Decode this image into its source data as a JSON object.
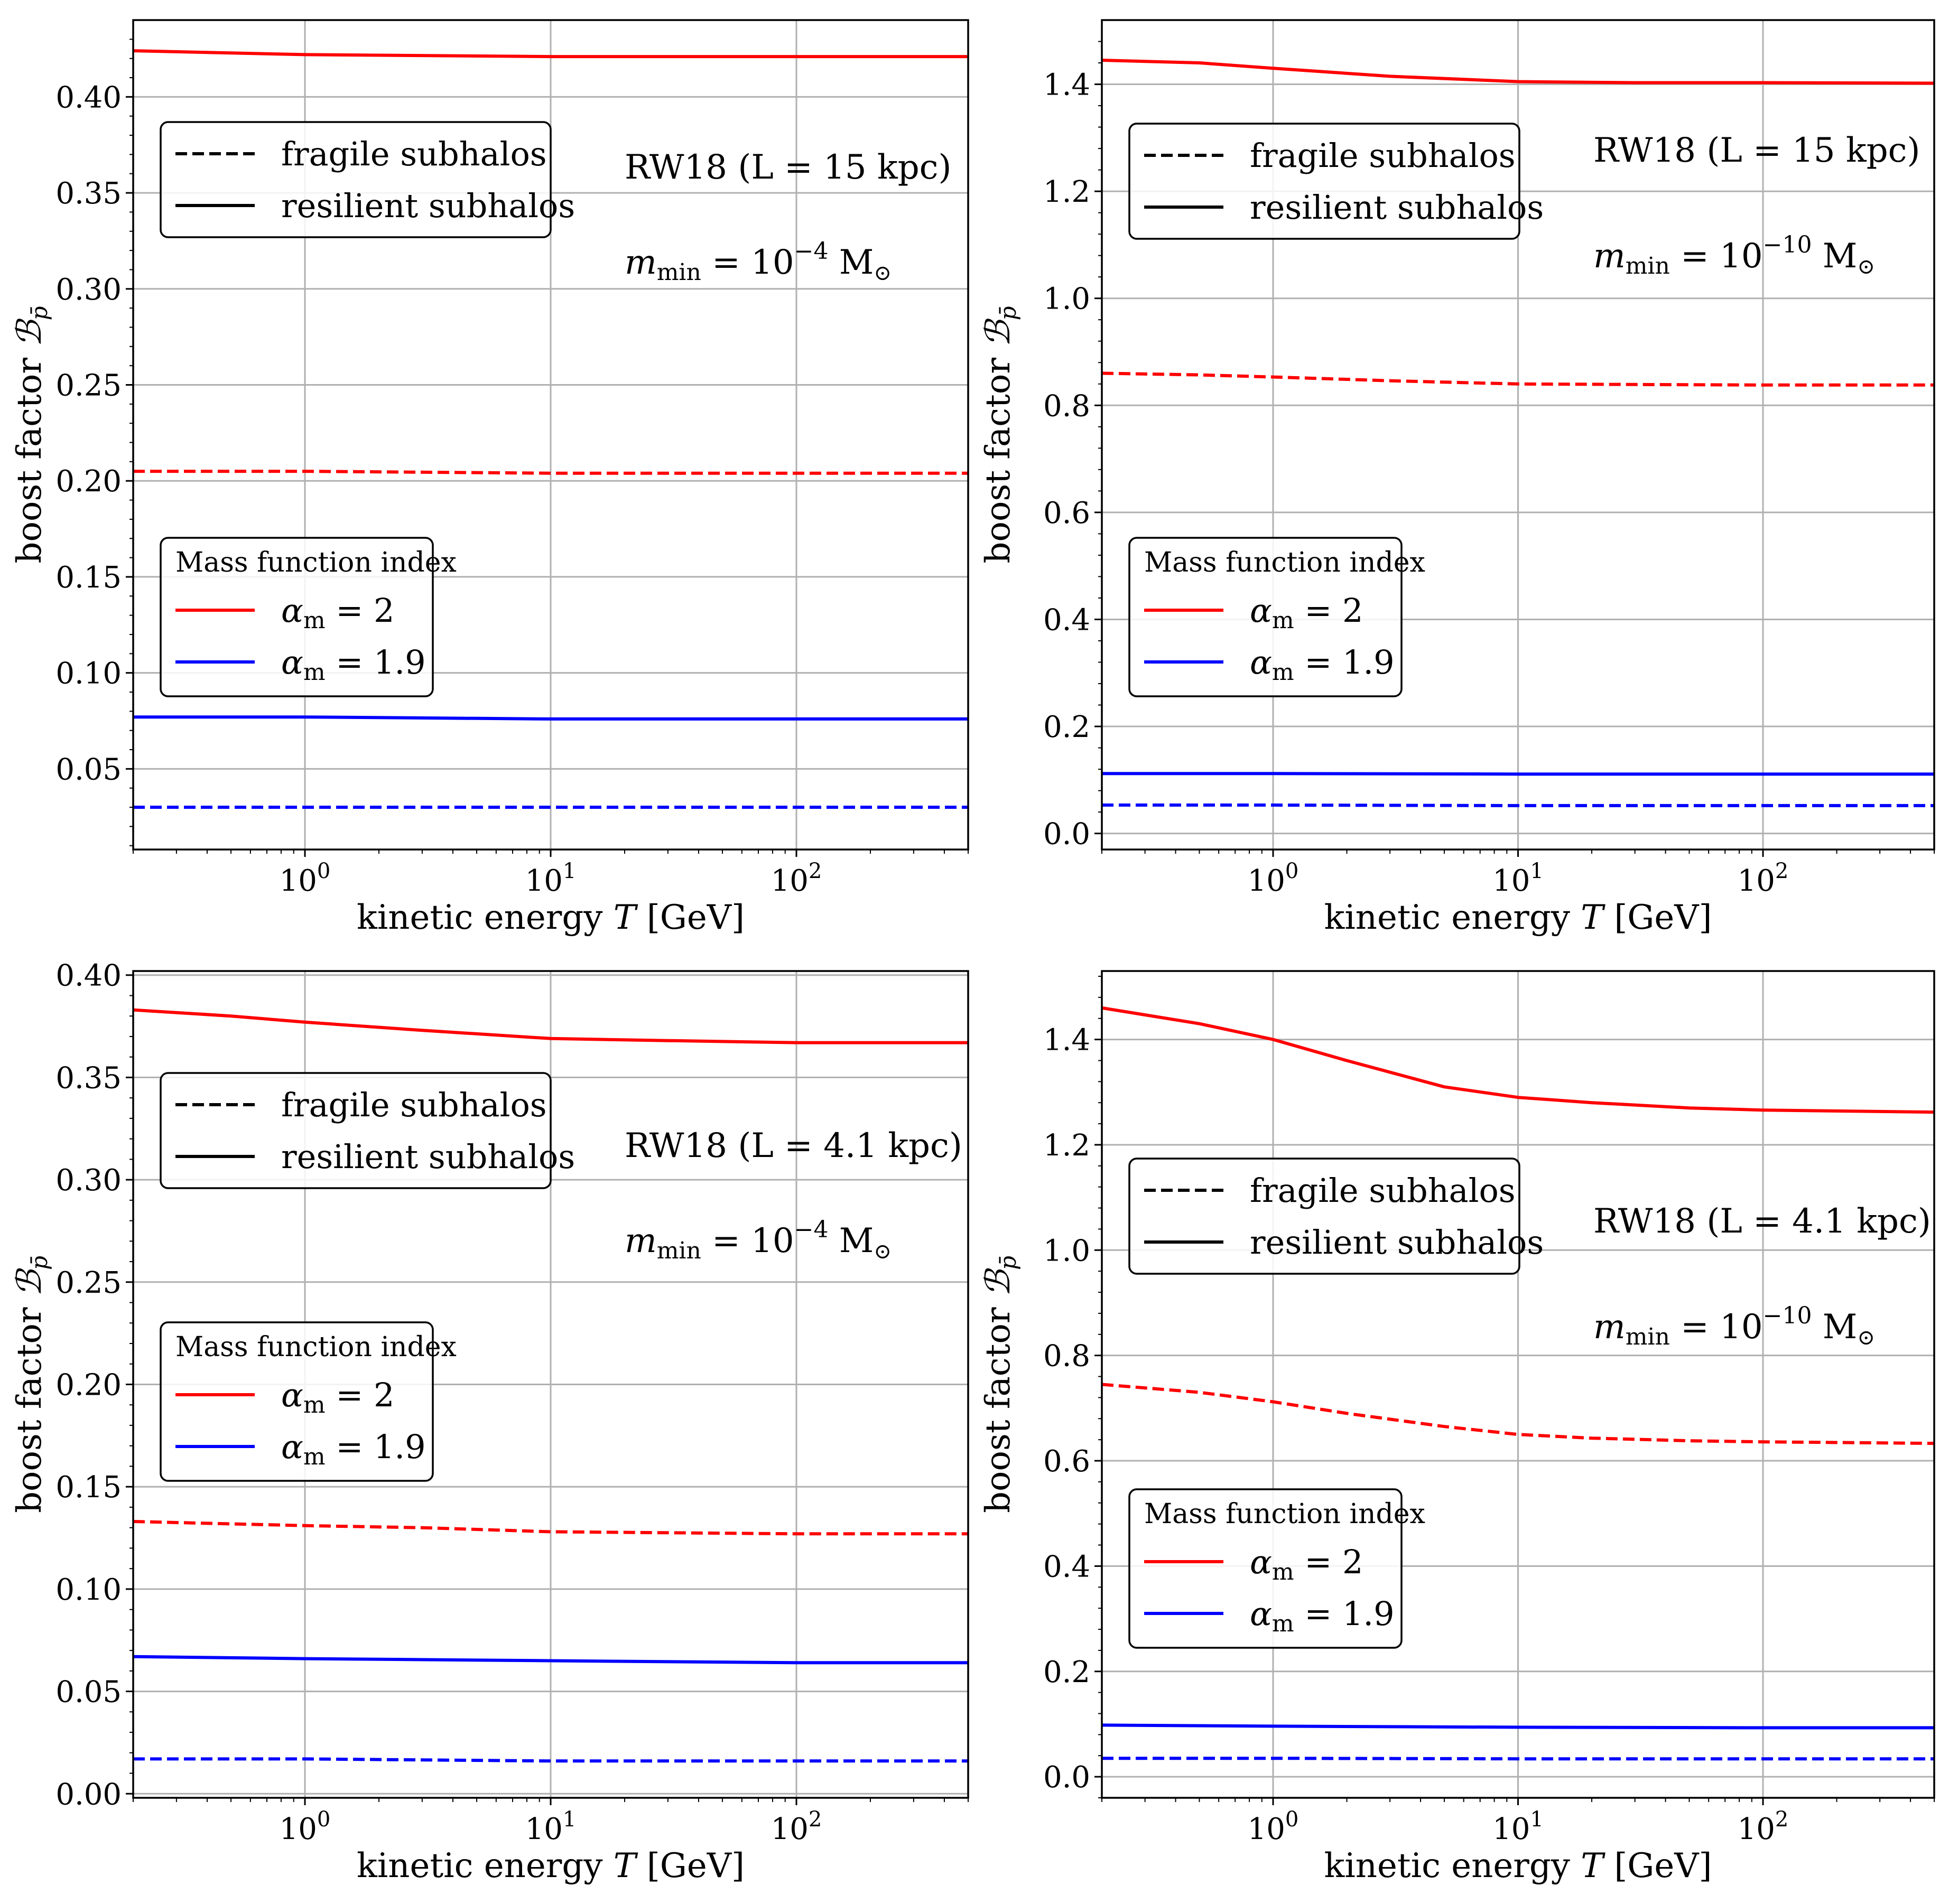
{
  "figure": {
    "colors": {
      "red": "#ff0000",
      "blue": "#0000ff",
      "grid": "#b0b0b0",
      "black": "#000000"
    }
  },
  "chart_data": [
    {
      "id": "top-left",
      "type": "line",
      "xscale": "log",
      "xlim": [
        0.2,
        500
      ],
      "ylim": [
        0.008,
        0.44
      ],
      "yticks": [
        0.05,
        0.1,
        0.15,
        0.2,
        0.25,
        0.3,
        0.35,
        0.4
      ],
      "ytick_labels": [
        "0.05",
        "0.10",
        "0.15",
        "0.20",
        "0.25",
        "0.30",
        "0.35",
        "0.40"
      ],
      "xticks": [
        1,
        10,
        100
      ],
      "xtick_labels": [
        {
          "base": "10",
          "exp": "0"
        },
        {
          "base": "10",
          "exp": "1"
        },
        {
          "base": "10",
          "exp": "2"
        }
      ],
      "xlabel": {
        "text": "kinetic energy ",
        "var": "T",
        "unit": " [GeV]"
      },
      "ylabel": {
        "text": "boost factor ",
        "var": "ℬ",
        "sub": "p̄"
      },
      "legend_style": {
        "placement": "upper-left",
        "entries": [
          "fragile subhalos",
          "resilient subhalos"
        ]
      },
      "legend_color": {
        "placement": "middle-left",
        "title": "Mass function index",
        "entries": [
          {
            "symbol": "α",
            "sub": "m",
            "text": " = 2"
          },
          {
            "symbol": "α",
            "sub": "m",
            "text": " = 1.9"
          }
        ]
      },
      "annotation": {
        "line1": "RW18 (L = 15 kpc)",
        "line2": {
          "var": "m",
          "sub": "min",
          "text": " = 10",
          "sup": "−4",
          "unit": " M",
          "unit_sub": "⊙"
        }
      },
      "series": [
        {
          "name": "resilient α=2",
          "color": "red",
          "style": "solid",
          "x": [
            0.2,
            1,
            10,
            100,
            500
          ],
          "y": [
            0.424,
            0.422,
            0.421,
            0.421,
            0.421
          ]
        },
        {
          "name": "fragile α=2",
          "color": "red",
          "style": "dashed",
          "x": [
            0.2,
            1,
            10,
            100,
            500
          ],
          "y": [
            0.205,
            0.205,
            0.204,
            0.204,
            0.204
          ]
        },
        {
          "name": "resilient α=1.9",
          "color": "blue",
          "style": "solid",
          "x": [
            0.2,
            1,
            10,
            100,
            500
          ],
          "y": [
            0.077,
            0.077,
            0.076,
            0.076,
            0.076
          ]
        },
        {
          "name": "fragile α=1.9",
          "color": "blue",
          "style": "dashed",
          "x": [
            0.2,
            1,
            10,
            100,
            500
          ],
          "y": [
            0.03,
            0.03,
            0.03,
            0.03,
            0.03
          ]
        }
      ]
    },
    {
      "id": "top-right",
      "type": "line",
      "xscale": "log",
      "xlim": [
        0.2,
        500
      ],
      "ylim": [
        -0.03,
        1.52
      ],
      "yticks": [
        0.0,
        0.2,
        0.4,
        0.6,
        0.8,
        1.0,
        1.2,
        1.4
      ],
      "ytick_labels": [
        "0.0",
        "0.2",
        "0.4",
        "0.6",
        "0.8",
        "1.0",
        "1.2",
        "1.4"
      ],
      "xticks": [
        1,
        10,
        100
      ],
      "xtick_labels": [
        {
          "base": "10",
          "exp": "0"
        },
        {
          "base": "10",
          "exp": "1"
        },
        {
          "base": "10",
          "exp": "2"
        }
      ],
      "xlabel": {
        "text": "kinetic energy ",
        "var": "T",
        "unit": " [GeV]"
      },
      "ylabel": {
        "text": "boost factor ",
        "var": "ℬ",
        "sub": "p̄"
      },
      "legend_style": {
        "placement": "upper-left",
        "entries": [
          "fragile subhalos",
          "resilient subhalos"
        ]
      },
      "legend_color": {
        "placement": "middle-left",
        "title": "Mass function index",
        "entries": [
          {
            "symbol": "α",
            "sub": "m",
            "text": " = 2"
          },
          {
            "symbol": "α",
            "sub": "m",
            "text": " = 1.9"
          }
        ]
      },
      "annotation": {
        "line1": "RW18 (L = 15 kpc)",
        "line2": {
          "var": "m",
          "sub": "min",
          "text": " = 10",
          "sup": "−10",
          "unit": " M",
          "unit_sub": "⊙"
        }
      },
      "series": [
        {
          "name": "resilient α=2",
          "color": "red",
          "style": "solid",
          "x": [
            0.2,
            0.5,
            1,
            3,
            10,
            30,
            100,
            500
          ],
          "y": [
            1.445,
            1.44,
            1.43,
            1.415,
            1.405,
            1.403,
            1.403,
            1.402
          ]
        },
        {
          "name": "fragile α=2",
          "color": "red",
          "style": "dashed",
          "x": [
            0.2,
            0.5,
            1,
            3,
            10,
            30,
            100,
            500
          ],
          "y": [
            0.86,
            0.857,
            0.853,
            0.846,
            0.84,
            0.839,
            0.838,
            0.838
          ]
        },
        {
          "name": "resilient α=1.9",
          "color": "blue",
          "style": "solid",
          "x": [
            0.2,
            1,
            10,
            100,
            500
          ],
          "y": [
            0.112,
            0.112,
            0.111,
            0.111,
            0.111
          ]
        },
        {
          "name": "fragile α=1.9",
          "color": "blue",
          "style": "dashed",
          "x": [
            0.2,
            1,
            10,
            100,
            500
          ],
          "y": [
            0.053,
            0.053,
            0.052,
            0.052,
            0.052
          ]
        }
      ]
    },
    {
      "id": "bottom-left",
      "type": "line",
      "xscale": "log",
      "xlim": [
        0.2,
        500
      ],
      "ylim": [
        -0.002,
        0.402
      ],
      "yticks": [
        0.0,
        0.05,
        0.1,
        0.15,
        0.2,
        0.25,
        0.3,
        0.35,
        0.4
      ],
      "ytick_labels": [
        "0.00",
        "0.05",
        "0.10",
        "0.15",
        "0.20",
        "0.25",
        "0.30",
        "0.35",
        "0.40"
      ],
      "xticks": [
        1,
        10,
        100
      ],
      "xtick_labels": [
        {
          "base": "10",
          "exp": "0"
        },
        {
          "base": "10",
          "exp": "1"
        },
        {
          "base": "10",
          "exp": "2"
        }
      ],
      "xlabel": {
        "text": "kinetic energy ",
        "var": "T",
        "unit": " [GeV]"
      },
      "ylabel": {
        "text": "boost factor ",
        "var": "ℬ",
        "sub": "p̄"
      },
      "legend_style": {
        "placement": "upper-left",
        "entries": [
          "fragile subhalos",
          "resilient subhalos"
        ]
      },
      "legend_color": {
        "placement": "middle-left",
        "title": "Mass function index",
        "entries": [
          {
            "symbol": "α",
            "sub": "m",
            "text": " = 2"
          },
          {
            "symbol": "α",
            "sub": "m",
            "text": " = 1.9"
          }
        ]
      },
      "annotation": {
        "line1": "RW18 (L = 4.1 kpc)",
        "line2": {
          "var": "m",
          "sub": "min",
          "text": " = 10",
          "sup": "−4",
          "unit": " M",
          "unit_sub": "⊙"
        }
      },
      "series": [
        {
          "name": "resilient α=2",
          "color": "red",
          "style": "solid",
          "x": [
            0.2,
            0.5,
            1,
            3,
            10,
            30,
            100,
            500
          ],
          "y": [
            0.383,
            0.38,
            0.377,
            0.373,
            0.369,
            0.368,
            0.367,
            0.367
          ]
        },
        {
          "name": "fragile α=2",
          "color": "red",
          "style": "dashed",
          "x": [
            0.2,
            1,
            3,
            10,
            100,
            500
          ],
          "y": [
            0.133,
            0.131,
            0.13,
            0.128,
            0.127,
            0.127
          ]
        },
        {
          "name": "resilient α=1.9",
          "color": "blue",
          "style": "solid",
          "x": [
            0.2,
            1,
            10,
            100,
            500
          ],
          "y": [
            0.067,
            0.066,
            0.065,
            0.064,
            0.064
          ]
        },
        {
          "name": "fragile α=1.9",
          "color": "blue",
          "style": "dashed",
          "x": [
            0.2,
            1,
            10,
            100,
            500
          ],
          "y": [
            0.017,
            0.017,
            0.016,
            0.016,
            0.016
          ]
        }
      ]
    },
    {
      "id": "bottom-right",
      "type": "line",
      "xscale": "log",
      "xlim": [
        0.2,
        500
      ],
      "ylim": [
        -0.04,
        1.53
      ],
      "yticks": [
        0.0,
        0.2,
        0.4,
        0.6,
        0.8,
        1.0,
        1.2,
        1.4
      ],
      "ytick_labels": [
        "0.0",
        "0.2",
        "0.4",
        "0.6",
        "0.8",
        "1.0",
        "1.2",
        "1.4"
      ],
      "xticks": [
        1,
        10,
        100
      ],
      "xtick_labels": [
        {
          "base": "10",
          "exp": "0"
        },
        {
          "base": "10",
          "exp": "1"
        },
        {
          "base": "10",
          "exp": "2"
        }
      ],
      "xlabel": {
        "text": "kinetic energy ",
        "var": "T",
        "unit": " [GeV]"
      },
      "ylabel": {
        "text": "boost factor ",
        "var": "ℬ",
        "sub": "p̄"
      },
      "legend_style": {
        "placement": "middle-left",
        "entries": [
          "fragile subhalos",
          "resilient subhalos"
        ]
      },
      "legend_color": {
        "placement": "lower-left",
        "title": "Mass function index",
        "entries": [
          {
            "symbol": "α",
            "sub": "m",
            "text": " = 2"
          },
          {
            "symbol": "α",
            "sub": "m",
            "text": " = 1.9"
          }
        ]
      },
      "annotation": {
        "line1": "RW18 (L = 4.1 kpc)",
        "line2": {
          "var": "m",
          "sub": "min",
          "text": " = 10",
          "sup": "−10",
          "unit": " M",
          "unit_sub": "⊙"
        }
      },
      "series": [
        {
          "name": "resilient α=2",
          "color": "red",
          "style": "solid",
          "x": [
            0.2,
            0.5,
            1,
            2,
            5,
            10,
            20,
            50,
            100,
            500
          ],
          "y": [
            1.46,
            1.43,
            1.4,
            1.36,
            1.31,
            1.29,
            1.28,
            1.27,
            1.266,
            1.262
          ]
        },
        {
          "name": "fragile α=2",
          "color": "red",
          "style": "dashed",
          "x": [
            0.2,
            0.5,
            1,
            2,
            5,
            10,
            20,
            50,
            100,
            500
          ],
          "y": [
            0.745,
            0.73,
            0.712,
            0.69,
            0.665,
            0.65,
            0.643,
            0.638,
            0.636,
            0.633
          ]
        },
        {
          "name": "resilient α=1.9",
          "color": "blue",
          "style": "solid",
          "x": [
            0.2,
            1,
            10,
            100,
            500
          ],
          "y": [
            0.098,
            0.096,
            0.094,
            0.093,
            0.093
          ]
        },
        {
          "name": "fragile α=1.9",
          "color": "blue",
          "style": "dashed",
          "x": [
            0.2,
            1,
            10,
            100,
            500
          ],
          "y": [
            0.035,
            0.035,
            0.034,
            0.034,
            0.034
          ]
        }
      ]
    }
  ]
}
